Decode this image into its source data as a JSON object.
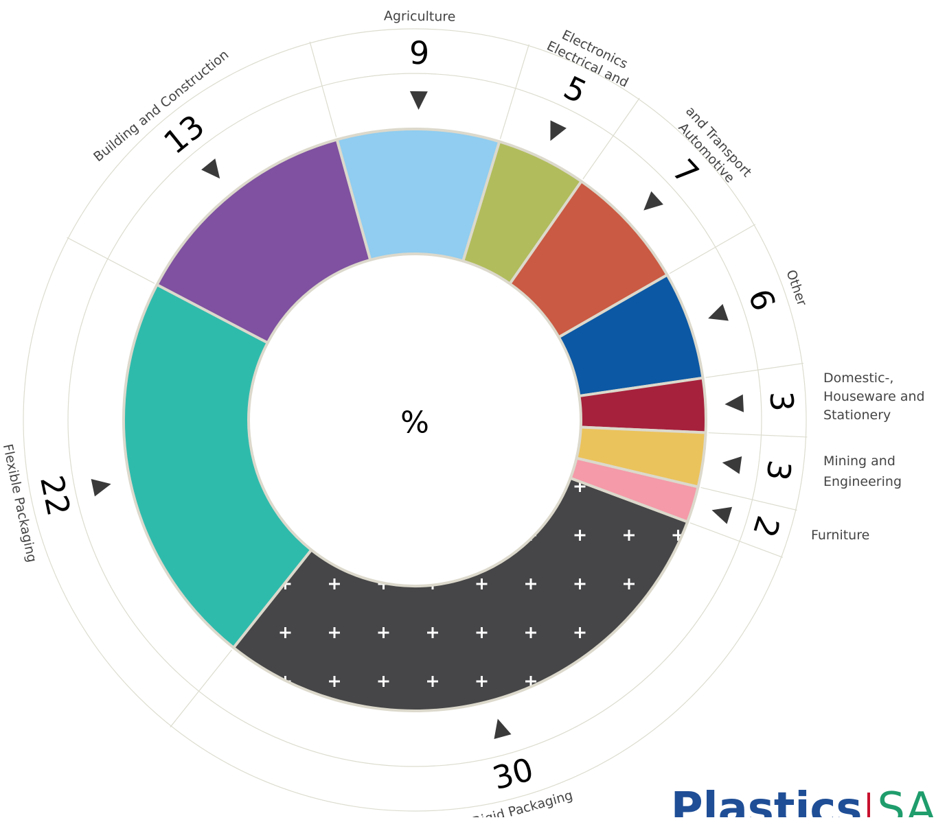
{
  "chart_data": {
    "type": "pie",
    "center_label": "%",
    "series": [
      {
        "name": "Rigid Packaging",
        "value": 30,
        "color": "#464648",
        "pattern": "plus"
      },
      {
        "name": "Flexible Packaging",
        "value": 22,
        "color": "#2fbbac"
      },
      {
        "name": "Building and Construction",
        "value": 13,
        "color": "#7f51a0"
      },
      {
        "name": "Agriculture",
        "value": 9,
        "color": "#90cdf0"
      },
      {
        "name": "Electrical and Electronics",
        "value": 5,
        "color": "#b1bc5c"
      },
      {
        "name": "Automotive and Transport",
        "value": 7,
        "color": "#ca5a43"
      },
      {
        "name": "Other",
        "value": 6,
        "color": "#0c58a4"
      },
      {
        "name": "Domestic-, Houseware and Stationery",
        "value": 3,
        "color": "#a6213c"
      },
      {
        "name": "Mining and Engineering",
        "value": 3,
        "color": "#ebc35c"
      },
      {
        "name": "Furniture",
        "value": 2,
        "color": "#f49aa8"
      }
    ],
    "category_labels": {
      "rigid": "Rigid Packaging",
      "flexible": "Flexible Packaging",
      "building": "Building and Construction",
      "agriculture": "Agriculture",
      "electrical": [
        "Electrical and",
        "Electronics"
      ],
      "automotive": [
        "Automotive",
        "and Transport"
      ],
      "other": "Other",
      "domestic": [
        "Domestic-,",
        "Houseware and",
        "Stationery"
      ],
      "mining": [
        "Mining and",
        "Engineering"
      ],
      "furniture": "Furniture"
    }
  },
  "logo": {
    "text_main": "Plastics",
    "text_suffix": "SA",
    "colors": {
      "main": "#1f4e96",
      "bar": "#c8102e",
      "suffix": "#1f9d6c"
    }
  }
}
